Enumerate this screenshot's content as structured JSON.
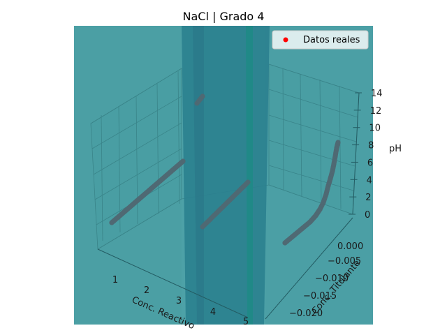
{
  "chart_data": {
    "type": "scatter",
    "projection": "3d",
    "title": "NaCl | Grado 4",
    "xlabel": "Conc. Reactivo",
    "ylabel": "Conc. Titulante",
    "zlabel": "pH",
    "x_ticks": [
      "1",
      "2",
      "3",
      "4",
      "5"
    ],
    "y_ticks": [
      "0.000",
      "−0.005",
      "−0.010",
      "−0.015",
      "−0.020"
    ],
    "z_ticks": [
      "0",
      "2",
      "4",
      "6",
      "8",
      "10",
      "12",
      "14"
    ],
    "zlim": [
      0,
      14
    ],
    "grid": true,
    "legend": {
      "position": "top-right",
      "entries": [
        "Datos reales"
      ]
    },
    "series": [
      {
        "name": "Datos reales",
        "color": "#ff0000",
        "marker": "circle"
      }
    ],
    "colors": {
      "surface": "#3f9aa0",
      "surface_dark": "#2f8690",
      "points": "#4f6973",
      "sheet": "#2a7f8e"
    }
  }
}
